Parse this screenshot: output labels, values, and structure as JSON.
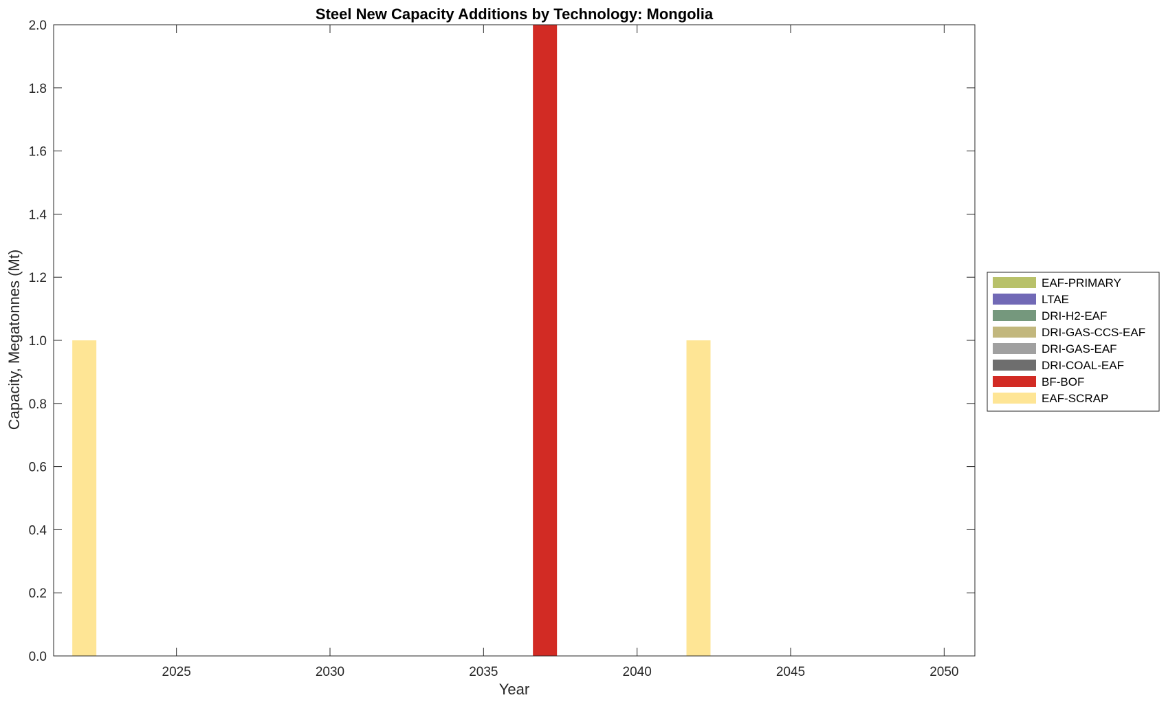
{
  "chart_data": {
    "type": "bar",
    "stacked": true,
    "title": "Steel New Capacity Additions by Technology: Mongolia",
    "xlabel": "Year",
    "ylabel": "Capacity, Megatonnes (Mt)",
    "xlim": [
      2021,
      2051
    ],
    "ylim": [
      0,
      2.0
    ],
    "x_ticks": [
      2025,
      2030,
      2035,
      2040,
      2045,
      2050
    ],
    "y_ticks": [
      0.0,
      0.2,
      0.4,
      0.6,
      0.8,
      1.0,
      1.2,
      1.4,
      1.6,
      1.8,
      2.0
    ],
    "grid": false,
    "legend_position": "right",
    "series": [
      {
        "name": "EAF-PRIMARY",
        "color": "#b8c16a",
        "points": []
      },
      {
        "name": "LTAE",
        "color": "#7169b6",
        "points": []
      },
      {
        "name": "DRI-H2-EAF",
        "color": "#75987d",
        "points": []
      },
      {
        "name": "DRI-GAS-CCS-EAF",
        "color": "#c2b77d",
        "points": []
      },
      {
        "name": "DRI-GAS-EAF",
        "color": "#a0a0a0",
        "points": []
      },
      {
        "name": "DRI-COAL-EAF",
        "color": "#6e6e6e",
        "points": []
      },
      {
        "name": "BF-BOF",
        "color": "#d22b24",
        "points": [
          {
            "x": 2037,
            "y": 2.0
          }
        ]
      },
      {
        "name": "EAF-SCRAP",
        "color": "#fee595",
        "points": [
          {
            "x": 2022,
            "y": 1.0
          },
          {
            "x": 2042,
            "y": 1.0
          }
        ]
      }
    ]
  }
}
